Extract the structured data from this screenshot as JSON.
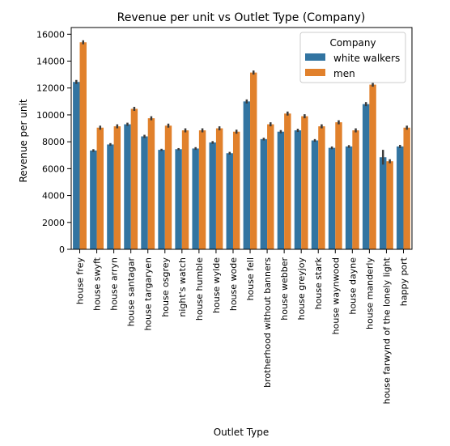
{
  "chart_data": {
    "type": "bar",
    "title": "Revenue per unit vs Outlet Type (Company)",
    "xlabel": "Outlet Type",
    "ylabel": "Revenue per unit",
    "ylim": [
      0,
      16500
    ],
    "yticks": [
      0,
      2000,
      4000,
      6000,
      8000,
      10000,
      12000,
      14000,
      16000
    ],
    "grid": false,
    "legend": {
      "title": "Company",
      "placement": "top-right"
    },
    "categories": [
      "house frey",
      "house swyft",
      "house arryn",
      "house santagar",
      "house targaryen",
      "house osgrey",
      "night's watch",
      "house humble",
      "house wylde",
      "house wode",
      "house fell",
      "brotherhood without banners",
      "house webber",
      "house greyjoy",
      "house stark",
      "house waynwood",
      "house dayne",
      "house manderly",
      "house farwynd of the lonely light",
      "happy port"
    ],
    "series": [
      {
        "name": "white walkers",
        "color": "#3274a1",
        "values": [
          12450,
          7350,
          7800,
          9300,
          8400,
          7400,
          7450,
          7500,
          7950,
          7150,
          11000,
          8200,
          8750,
          8850,
          8100,
          7550,
          7650,
          10800,
          6850,
          7650
        ],
        "errors": [
          150,
          100,
          100,
          120,
          120,
          80,
          80,
          100,
          100,
          100,
          150,
          100,
          120,
          120,
          100,
          100,
          100,
          150,
          550,
          120
        ]
      },
      {
        "name": "men",
        "color": "#e1812c",
        "values": [
          15400,
          9050,
          9150,
          10450,
          9750,
          9200,
          8850,
          8850,
          9000,
          8750,
          13150,
          9300,
          10100,
          9900,
          9150,
          9450,
          8850,
          12250,
          6550,
          9050
        ]
      }
    ]
  }
}
